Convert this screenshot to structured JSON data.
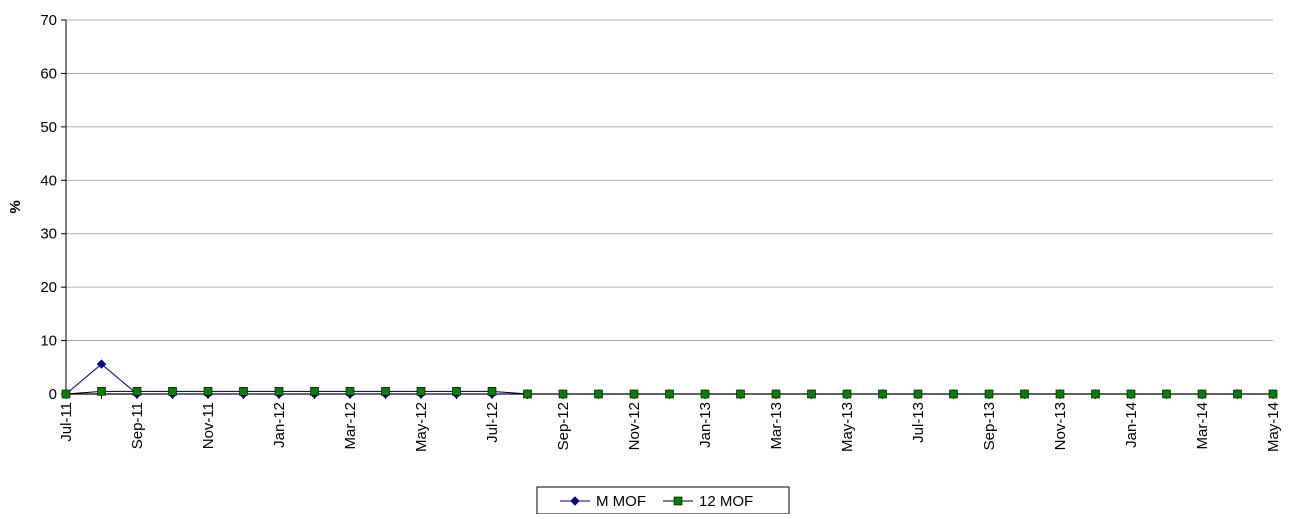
{
  "chart_data": {
    "type": "line",
    "title": "",
    "xlabel": "",
    "ylabel": "%",
    "ylim": [
      0,
      70
    ],
    "yticks": [
      0,
      10,
      20,
      30,
      40,
      50,
      60,
      70
    ],
    "grid": true,
    "legend_position": "bottom",
    "x": [
      "Jul-11",
      "Aug-11",
      "Sep-11",
      "Oct-11",
      "Nov-11",
      "Dec-11",
      "Jan-12",
      "Feb-12",
      "Mar-12",
      "Apr-12",
      "May-12",
      "Jun-12",
      "Jul-12",
      "Aug-12",
      "Sep-12",
      "Oct-12",
      "Nov-12",
      "Dec-12",
      "Jan-13",
      "Feb-13",
      "Mar-13",
      "Apr-13",
      "May-13",
      "Jun-13",
      "Jul-13",
      "Aug-13",
      "Sep-13",
      "Oct-13",
      "Nov-13",
      "Dec-13",
      "Jan-14",
      "Feb-14",
      "Mar-14",
      "Apr-14",
      "May-14"
    ],
    "x_tick_labels": [
      "Jul-11",
      "Sep-11",
      "Nov-11",
      "Jan-12",
      "Mar-12",
      "May-12",
      "Jul-12",
      "Sep-12",
      "Nov-12",
      "Jan-13",
      "Mar-13",
      "May-13",
      "Jul-13",
      "Sep-13",
      "Nov-13",
      "Jan-14",
      "Mar-14",
      "May-14"
    ],
    "series": [
      {
        "name": "M MOF",
        "color": "#000080",
        "marker": "diamond",
        "values": [
          0,
          5.6,
          0,
          0,
          0,
          0,
          0,
          0,
          0,
          0,
          0,
          0,
          0,
          0,
          0,
          0,
          0,
          0,
          0,
          0,
          0,
          0,
          0,
          0,
          0,
          0,
          0,
          0,
          0,
          0,
          0,
          0,
          0,
          0,
          0
        ]
      },
      {
        "name": "12 MOF",
        "color": "#008000",
        "marker": "square",
        "values": [
          0,
          0.5,
          0.5,
          0.5,
          0.5,
          0.5,
          0.5,
          0.5,
          0.5,
          0.5,
          0.5,
          0.5,
          0.5,
          0,
          0,
          0,
          0,
          0,
          0,
          0,
          0,
          0,
          0,
          0,
          0,
          0,
          0,
          0,
          0,
          0,
          0,
          0,
          0,
          0,
          0
        ]
      }
    ]
  }
}
